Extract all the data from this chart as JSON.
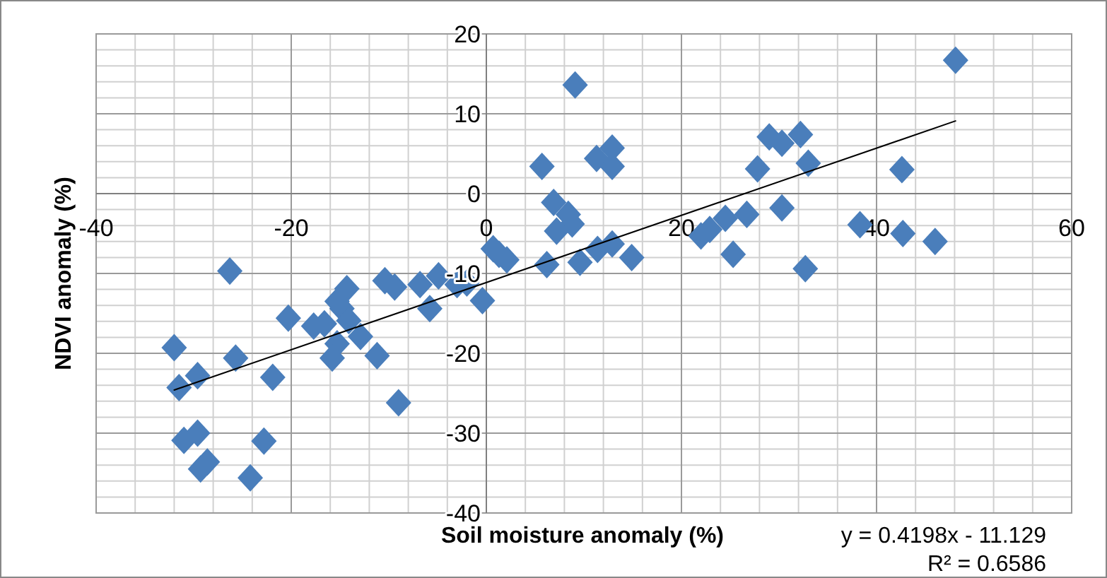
{
  "chart_data": {
    "type": "scatter",
    "xlabel": "Soil moisture anomaly (%)",
    "ylabel": "NDVI anomaly (%)",
    "xlim": [
      -40,
      60
    ],
    "ylim": [
      -40,
      20
    ],
    "xticks": [
      -40,
      -20,
      0,
      20,
      40,
      60
    ],
    "yticks": [
      -40,
      -30,
      -20,
      -10,
      0,
      10,
      20
    ],
    "grid": true,
    "marker": "diamond",
    "annotations": [
      "y = 0.4198x - 11.129",
      "R² = 0.6586"
    ],
    "series": [
      {
        "color": "#4a7ebb",
        "x": [
          48.1,
          9.1,
          5.7,
          11.3,
          12.9,
          12.9,
          29.0,
          30.3,
          32.2,
          33.0,
          27.8,
          42.6,
          6.9,
          8.4,
          8.8,
          7.2,
          30.3,
          38.3,
          42.7,
          46.0,
          24.5,
          26.7,
          22.9,
          22.0,
          25.3,
          32.7,
          0.7,
          1.3,
          2.1,
          6.2,
          9.6,
          11.4,
          12.9,
          14.9,
          -26.3,
          -32.0,
          -31.5,
          -29.6,
          -25.7,
          -21.9,
          -20.3,
          -31.0,
          -29.6,
          -29.3,
          -28.6,
          -22.8,
          -24.2,
          -17.7,
          -16.6,
          -15.3,
          -14.3,
          -14.8,
          -14.1,
          -12.9,
          -15.3,
          -15.8,
          -11.2,
          -10.4,
          -9.4,
          -9.0,
          -6.8,
          -5.8,
          -4.9,
          -3.0,
          -2.0,
          -0.4
        ],
        "values": [
          16.7,
          13.6,
          3.4,
          4.4,
          5.7,
          3.4,
          7.1,
          6.3,
          7.4,
          3.8,
          3.1,
          3.0,
          -1.1,
          -2.6,
          -3.8,
          -4.7,
          -1.8,
          -3.9,
          -5.0,
          -6.0,
          -3.1,
          -2.6,
          -4.5,
          -5.3,
          -7.6,
          -9.4,
          -6.9,
          -7.6,
          -8.3,
          -8.9,
          -8.6,
          -7.0,
          -6.3,
          -8.0,
          -9.7,
          -19.3,
          -24.3,
          -22.8,
          -20.6,
          -23.0,
          -15.6,
          -30.9,
          -30.0,
          -34.5,
          -33.6,
          -31.0,
          -35.6,
          -16.6,
          -16.3,
          -13.5,
          -11.9,
          -14.4,
          -15.9,
          -17.9,
          -18.8,
          -20.6,
          -20.3,
          -10.9,
          -11.7,
          -26.2,
          -11.4,
          -14.4,
          -10.3,
          -11.4,
          -11.2,
          -13.4
        ]
      },
      {
        "type": "line",
        "marker": "none",
        "color": "#000000",
        "x": [
          -32,
          48.1
        ],
        "values": [
          -24.6,
          9.1
        ]
      }
    ]
  }
}
